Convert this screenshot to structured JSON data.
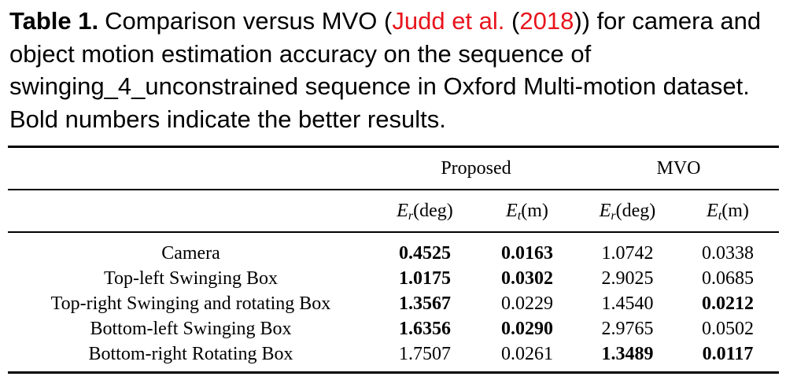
{
  "caption": {
    "label": "Table 1.",
    "parts": [
      {
        "text": "Comparison versus MVO (",
        "color": "#000000"
      },
      {
        "text": "Judd et al.",
        "color": "#e8141c"
      },
      {
        "text": " (",
        "color": "#000000"
      },
      {
        "text": "2018",
        "color": "#e8141c"
      },
      {
        "text": ")) for camera and object motion estimation accuracy on the sequence of swinging_4_unconstrained sequence in Oxford Multi-motion dataset. Bold numbers indicate the better results.",
        "color": "#000000"
      }
    ]
  },
  "table": {
    "groups": [
      "Proposed",
      "MVO"
    ],
    "columns": [
      {
        "symbol": "E",
        "sub": "r",
        "unit": "(deg)"
      },
      {
        "symbol": "E",
        "sub": "t",
        "unit": "(m)"
      },
      {
        "symbol": "E",
        "sub": "r",
        "unit": "(deg)"
      },
      {
        "symbol": "E",
        "sub": "t",
        "unit": "(m)"
      }
    ],
    "rows": [
      {
        "name": "Camera",
        "values": [
          "0.4525",
          "0.0163",
          "1.0742",
          "0.0338"
        ],
        "bold": [
          true,
          true,
          false,
          false
        ]
      },
      {
        "name": "Top-left Swinging Box",
        "values": [
          "1.0175",
          "0.0302",
          "2.9025",
          "0.0685"
        ],
        "bold": [
          true,
          true,
          false,
          false
        ]
      },
      {
        "name": "Top-right Swinging and rotating Box",
        "values": [
          "1.3567",
          "0.0229",
          "1.4540",
          "0.0212"
        ],
        "bold": [
          true,
          false,
          false,
          true
        ]
      },
      {
        "name": "Bottom-left Swinging Box",
        "values": [
          "1.6356",
          "0.0290",
          "2.9765",
          "0.0502"
        ],
        "bold": [
          true,
          true,
          false,
          false
        ]
      },
      {
        "name": "Bottom-right Rotating Box",
        "values": [
          "1.7507",
          "0.0261",
          "1.3489",
          "0.0117"
        ],
        "bold": [
          false,
          false,
          true,
          true
        ]
      }
    ]
  }
}
